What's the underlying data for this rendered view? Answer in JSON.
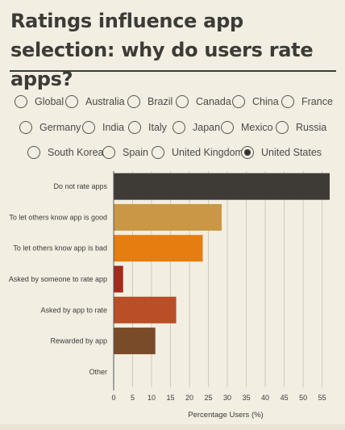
{
  "title": "Ratings influence app selection: why do users rate apps?",
  "countries": {
    "rows": [
      [
        {
          "label": "Global",
          "checked": false
        },
        {
          "label": "Australia",
          "checked": false
        },
        {
          "label": "Brazil",
          "checked": false
        },
        {
          "label": "Canada",
          "checked": false
        },
        {
          "label": "China",
          "checked": false
        },
        {
          "label": "France",
          "checked": false
        }
      ],
      [
        {
          "label": "Germany",
          "checked": false
        },
        {
          "label": "India",
          "checked": false
        },
        {
          "label": "Italy",
          "checked": false
        },
        {
          "label": "Japan",
          "checked": false
        },
        {
          "label": "Mexico",
          "checked": false
        },
        {
          "label": "Russia",
          "checked": false
        }
      ],
      [
        {
          "label": "South Korea",
          "checked": false
        },
        {
          "label": "Spain",
          "checked": false
        },
        {
          "label": "United Kingdom",
          "checked": false
        },
        {
          "label": "United States",
          "checked": true
        }
      ]
    ]
  },
  "chart_data": {
    "type": "bar",
    "orientation": "horizontal",
    "categories": [
      "Do not rate apps",
      "To let others know app is good",
      "To let others know app is bad",
      "Asked by someone to rate app",
      "Asked by app to rate",
      "Rewarded by app",
      "Other"
    ],
    "values": [
      57,
      28.5,
      23.5,
      2.5,
      16.5,
      11,
      0
    ],
    "colors": [
      "#3e3b37",
      "#c99844",
      "#e57d10",
      "#a22a1e",
      "#b94e27",
      "#7a4b28",
      "#888888"
    ],
    "xlabel": "Percentage Users (%)",
    "ylabel": "",
    "xlim": [
      0,
      57
    ],
    "xticks": [
      0,
      5,
      10,
      15,
      20,
      25,
      30,
      35,
      40,
      45,
      50,
      55
    ],
    "grid": true
  }
}
